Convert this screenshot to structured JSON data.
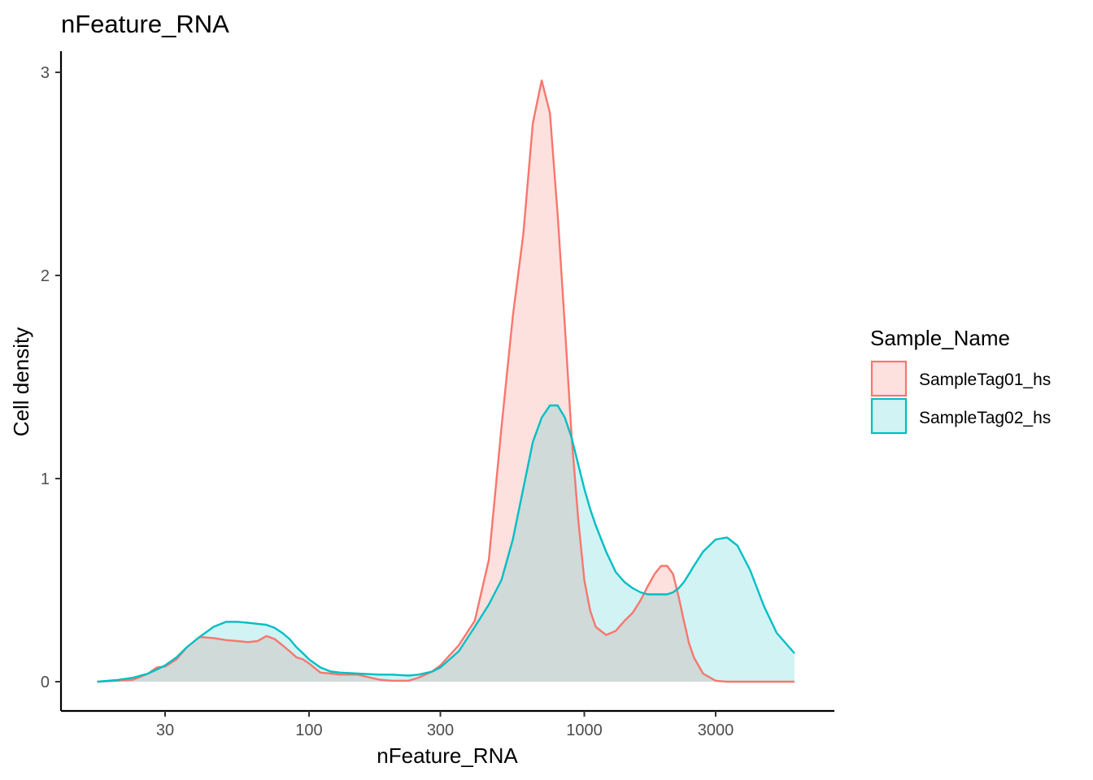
{
  "chart_data": {
    "type": "area",
    "title": "nFeature_RNA",
    "xlabel": "nFeature_RNA",
    "ylabel": "Cell density",
    "x_scale": "log10",
    "xlim": [
      11,
      7000
    ],
    "ylim": [
      -0.15,
      3.1
    ],
    "x_ticks": [
      30,
      100,
      300,
      1000,
      3000
    ],
    "x_tick_labels": [
      "30",
      "100",
      "300",
      "1000",
      "3000"
    ],
    "y_ticks": [
      0,
      1,
      2,
      3
    ],
    "y_tick_labels": [
      "0",
      "1",
      "2",
      "3"
    ],
    "grid": false,
    "legend": {
      "title": "Sample_Name",
      "position": "right"
    },
    "series": [
      {
        "name": "SampleTag01_hs",
        "color": "#F8766D",
        "fill": "#F8766D",
        "fill_opacity": 0.22,
        "x": [
          17,
          20,
          23,
          26,
          28,
          30,
          33,
          36,
          40,
          45,
          50,
          55,
          60,
          65,
          70,
          75,
          80,
          85,
          90,
          95,
          100,
          110,
          120,
          130,
          150,
          180,
          200,
          230,
          250,
          280,
          300,
          350,
          400,
          450,
          500,
          550,
          600,
          650,
          700,
          750,
          800,
          850,
          900,
          950,
          1000,
          1050,
          1100,
          1200,
          1300,
          1400,
          1500,
          1600,
          1700,
          1800,
          1900,
          2000,
          2100,
          2200,
          2300,
          2400,
          2500,
          2700,
          3000,
          3300,
          3600,
          4000,
          4500,
          5000,
          5800
        ],
        "y": [
          0.0,
          0.005,
          0.01,
          0.04,
          0.07,
          0.075,
          0.11,
          0.17,
          0.22,
          0.215,
          0.205,
          0.2,
          0.195,
          0.2,
          0.225,
          0.21,
          0.18,
          0.15,
          0.12,
          0.11,
          0.09,
          0.045,
          0.04,
          0.035,
          0.035,
          0.01,
          0.005,
          0.005,
          0.02,
          0.05,
          0.08,
          0.18,
          0.3,
          0.6,
          1.25,
          1.8,
          2.2,
          2.75,
          2.96,
          2.8,
          2.3,
          1.75,
          1.2,
          0.8,
          0.5,
          0.35,
          0.27,
          0.23,
          0.25,
          0.3,
          0.34,
          0.4,
          0.47,
          0.53,
          0.57,
          0.57,
          0.53,
          0.42,
          0.3,
          0.19,
          0.12,
          0.04,
          0.005,
          0.0,
          0.0,
          0.0,
          0.0,
          0.0,
          0.0
        ]
      },
      {
        "name": "SampleTag02_hs",
        "color": "#00BFC4",
        "fill": "#00BFC4",
        "fill_opacity": 0.18,
        "x": [
          17,
          20,
          23,
          26,
          28,
          30,
          33,
          36,
          40,
          45,
          50,
          55,
          60,
          65,
          70,
          75,
          80,
          85,
          90,
          95,
          100,
          110,
          120,
          130,
          150,
          180,
          200,
          230,
          250,
          280,
          300,
          350,
          400,
          450,
          500,
          550,
          600,
          650,
          700,
          750,
          800,
          850,
          900,
          950,
          1000,
          1050,
          1100,
          1200,
          1300,
          1400,
          1500,
          1600,
          1700,
          1800,
          1900,
          2000,
          2100,
          2200,
          2300,
          2400,
          2500,
          2700,
          3000,
          3300,
          3600,
          4000,
          4500,
          5000,
          5800
        ],
        "y": [
          0.0,
          0.008,
          0.02,
          0.04,
          0.06,
          0.08,
          0.12,
          0.17,
          0.22,
          0.27,
          0.295,
          0.295,
          0.29,
          0.285,
          0.28,
          0.265,
          0.24,
          0.21,
          0.17,
          0.14,
          0.11,
          0.07,
          0.05,
          0.045,
          0.04,
          0.035,
          0.035,
          0.03,
          0.035,
          0.05,
          0.07,
          0.15,
          0.27,
          0.38,
          0.5,
          0.7,
          0.95,
          1.18,
          1.3,
          1.36,
          1.36,
          1.3,
          1.2,
          1.07,
          0.95,
          0.85,
          0.77,
          0.64,
          0.54,
          0.49,
          0.46,
          0.44,
          0.43,
          0.43,
          0.43,
          0.43,
          0.44,
          0.46,
          0.49,
          0.53,
          0.57,
          0.64,
          0.7,
          0.71,
          0.67,
          0.55,
          0.37,
          0.24,
          0.14
        ]
      }
    ]
  }
}
